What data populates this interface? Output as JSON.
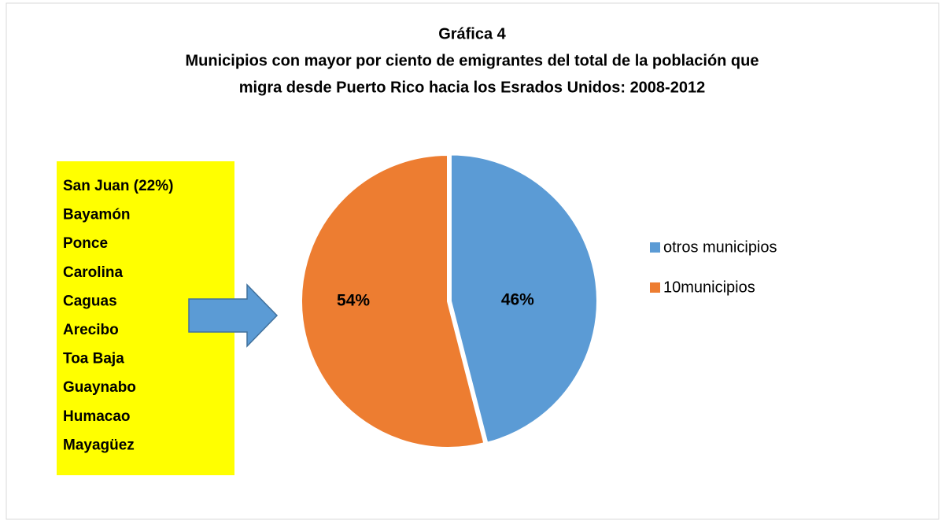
{
  "chart_data": {
    "type": "pie",
    "title": [
      "Gráfica 4",
      "Municipios con mayor por ciento de emigrantes del total de la población que",
      "migra desde Puerto Rico hacia los Esrados Unidos: 2008-2012"
    ],
    "categories": [
      "otros municipios",
      "10municipios"
    ],
    "series": [
      {
        "values": [
          46,
          54
        ],
        "value_labels": [
          "46%",
          "54%"
        ],
        "colors": [
          "#5b9bd5",
          "#ed7d31"
        ]
      }
    ],
    "legend": "right",
    "annotation": [
      "San Juan (22%)",
      "Bayamón",
      "Ponce",
      "Carolina",
      "Caguas",
      "Arecibo",
      "Toa Baja",
      "Guaynabo",
      "Humacao",
      "Mayagüez"
    ]
  }
}
